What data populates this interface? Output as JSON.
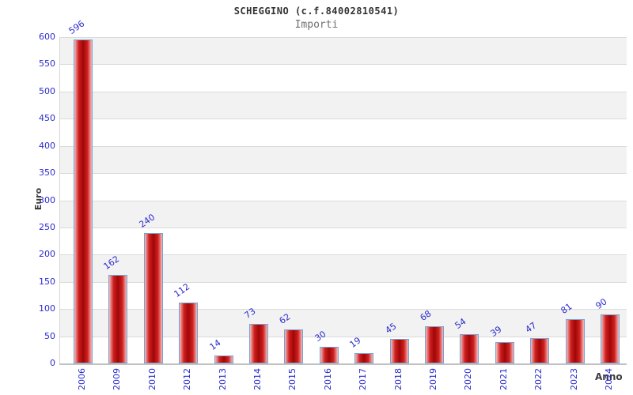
{
  "chart_data": {
    "type": "bar",
    "title": "SCHEGGINO (c.f.84002810541)",
    "subtitle": "Importi",
    "xlabel": "Anno",
    "ylabel": "Euro",
    "categories": [
      "2006",
      "2009",
      "2010",
      "2012",
      "2013",
      "2014",
      "2015",
      "2016",
      "2017",
      "2018",
      "2019",
      "2020",
      "2021",
      "2022",
      "2023",
      "2024"
    ],
    "values": [
      596,
      162,
      240,
      112,
      14,
      73,
      62,
      30,
      19,
      45,
      68,
      54,
      39,
      47,
      81,
      90
    ],
    "ylim": [
      0,
      600
    ],
    "ytick_step": 50,
    "yticks": [
      0,
      50,
      100,
      150,
      200,
      250,
      300,
      350,
      400,
      450,
      500,
      550,
      600
    ],
    "legend": "none",
    "grid": "horizontal alternating bands",
    "bar_value_labels_rotated": true,
    "colors": {
      "bar_fill_edge": "#f6bcbc",
      "bar_fill_mid": "#cf1f1f",
      "bar_fill_dark": "#9f0707",
      "bar_border": "#74a3d4",
      "label_blue": "#2b2bce",
      "band_gray": "#f2f2f2",
      "band_white": "#ffffff",
      "gridline": "#dadada",
      "axis_line": "#c2c2c2",
      "title_color": "#333333",
      "subtitle_color": "#707070",
      "axis_title_color": "#3c3c3c"
    }
  }
}
